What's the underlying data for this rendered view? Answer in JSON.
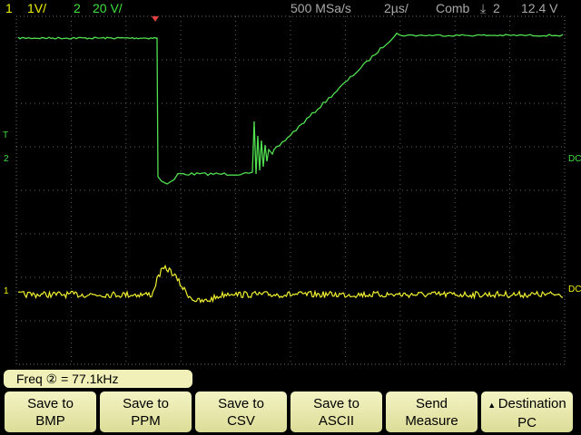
{
  "header": {
    "ch1_number": "1",
    "ch1_scale": "1V/",
    "ch2_number": "2",
    "ch2_scale": "20 V/",
    "sample_rate": "500 MSa/s",
    "timebase": "2µs/",
    "trigger_mode": "Comb",
    "trigger_source": "2",
    "trigger_level": "12.4 V"
  },
  "markers": {
    "trigger_level": "T",
    "ch2_left": "2",
    "ch1_left": "1",
    "ch2_coupling": "DC",
    "ch1_coupling": "DC"
  },
  "measurement": "Freq ② = 77.1kHz",
  "softkeys": [
    {
      "line1": "Save to",
      "line2": "BMP"
    },
    {
      "line1": "Save to",
      "line2": "PPM"
    },
    {
      "line1": "Save to",
      "line2": "CSV"
    },
    {
      "line1": "Save to",
      "line2": "ASCII"
    },
    {
      "line1": "Send",
      "line2": "Measure"
    },
    {
      "line1": "Destination",
      "line2": "PC"
    }
  ]
}
